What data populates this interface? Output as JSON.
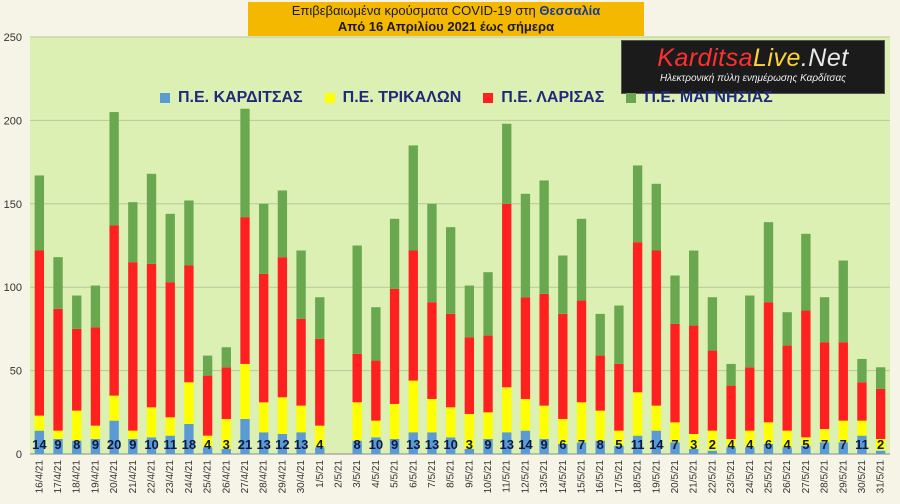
{
  "header": {
    "title_prefix": "Επιβεβαιωμένα κρούσματα COVID-19 στη",
    "title_region": "Θεσσαλία",
    "subtitle": "Από 16 Απριλίου 2021 έως σήμερα"
  },
  "logo": {
    "part1": "Karditsa",
    "part2": "Live",
    "part3": ".Net",
    "tagline": "Ηλεκτρονική πύλη ενημέρωσης Καρδίτσας"
  },
  "colors": {
    "background": "#f6f4e6",
    "plot_area": "#ddf0b4",
    "gridline": "#b8c79a",
    "title_bg": "#f5b800",
    "label_text": "#0f1940"
  },
  "chart_data": {
    "type": "bar",
    "stacked": true,
    "ylim": [
      0,
      250
    ],
    "yticks": [
      0,
      50,
      100,
      150,
      200,
      250
    ],
    "grid": true,
    "legend_position": "top",
    "categories": [
      "16/4/21",
      "17/4/21",
      "18/4/21",
      "19/4/21",
      "20/4/21",
      "21/4/21",
      "22/4/21",
      "23/4/21",
      "24/4/21",
      "25/4/21",
      "26/4/21",
      "27/4/21",
      "28/4/21",
      "29/4/21",
      "30/4/21",
      "1/5/21",
      "2/5/21",
      "3/5/21",
      "4/5/21",
      "5/5/21",
      "6/5/21",
      "7/5/21",
      "8/5/21",
      "9/5/21",
      "10/5/21",
      "11/5/21",
      "12/5/21",
      "13/5/21",
      "14/5/21",
      "15/5/21",
      "16/5/21",
      "17/5/21",
      "18/5/21",
      "19/5/21",
      "20/5/21",
      "21/5/21",
      "22/5/21",
      "23/5/21",
      "24/5/21",
      "25/5/21",
      "26/5/21",
      "27/5/21",
      "28/5/21",
      "29/5/21",
      "30/5/21",
      "31/5/21"
    ],
    "series": [
      {
        "name": "Π.Ε. ΚΑΡΔΙΤΣΑΣ",
        "color": "#5b9bd5",
        "values": [
          14,
          9,
          8,
          9,
          20,
          9,
          10,
          11,
          18,
          4,
          3,
          21,
          13,
          12,
          13,
          4,
          0,
          8,
          10,
          9,
          13,
          13,
          10,
          3,
          9,
          13,
          14,
          9,
          6,
          7,
          8,
          5,
          11,
          14,
          7,
          3,
          2,
          4,
          4,
          6,
          4,
          5,
          7,
          7,
          11,
          2
        ]
      },
      {
        "name": "Π.Ε. ΤΡΙΚΑΛΩΝ",
        "color": "#ffff00",
        "values": [
          9,
          5,
          18,
          8,
          15,
          5,
          18,
          11,
          25,
          7,
          18,
          33,
          18,
          22,
          16,
          13,
          0,
          23,
          10,
          21,
          31,
          20,
          18,
          21,
          16,
          27,
          19,
          20,
          15,
          24,
          18,
          9,
          26,
          15,
          12,
          9,
          12,
          5,
          10,
          13,
          10,
          5,
          8,
          13,
          9,
          7
        ]
      },
      {
        "name": "Π.Ε. ΛΑΡΙΣΑΣ",
        "color": "#ff2020",
        "values": [
          99,
          73,
          49,
          59,
          102,
          101,
          86,
          81,
          70,
          36,
          31,
          88,
          77,
          84,
          52,
          52,
          0,
          29,
          36,
          69,
          78,
          58,
          56,
          46,
          46,
          110,
          61,
          67,
          63,
          61,
          33,
          40,
          90,
          93,
          59,
          65,
          48,
          32,
          38,
          72,
          51,
          76,
          52,
          47,
          23,
          30
        ]
      },
      {
        "name": "Π.Ε. ΜΑΓΝΗΣΙΑΣ",
        "color": "#6aa84f",
        "values": [
          45,
          31,
          20,
          25,
          68,
          36,
          54,
          41,
          39,
          12,
          12,
          65,
          42,
          40,
          41,
          25,
          0,
          65,
          32,
          42,
          63,
          59,
          52,
          31,
          38,
          48,
          62,
          68,
          35,
          49,
          25,
          35,
          46,
          40,
          29,
          45,
          32,
          13,
          43,
          48,
          20,
          46,
          27,
          49,
          14,
          13
        ]
      }
    ],
    "data_labels": [
      14,
      9,
      8,
      9,
      20,
      9,
      10,
      11,
      18,
      4,
      3,
      21,
      13,
      12,
      13,
      4,
      "",
      8,
      10,
      9,
      13,
      13,
      10,
      3,
      9,
      13,
      14,
      9,
      6,
      7,
      8,
      5,
      11,
      14,
      7,
      3,
      2,
      4,
      4,
      6,
      4,
      5,
      7,
      7,
      11,
      2
    ]
  }
}
